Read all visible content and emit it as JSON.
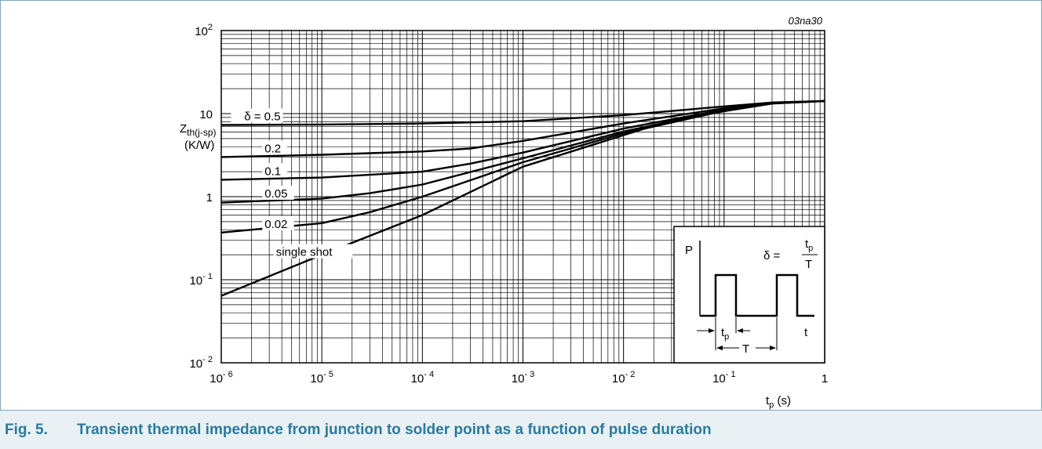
{
  "figure_id": "03na30",
  "caption": {
    "number": "Fig. 5.",
    "text": "Transient thermal impedance from junction to solder point as a function of pulse duration"
  },
  "chart_data": {
    "type": "line",
    "title": "",
    "xlabel": {
      "main": "t",
      "sub": "p",
      "unit": " (s)"
    },
    "ylabel": {
      "main": "Z",
      "sub": "th(j-sp)",
      "unit": "(K/W)"
    },
    "xscale": "log",
    "yscale": "log",
    "xlim": [
      1e-06,
      1
    ],
    "ylim": [
      0.01,
      100
    ],
    "grid": true,
    "x_ticks": [
      {
        "base": "10",
        "exp": "- 6"
      },
      {
        "base": "10",
        "exp": "- 5"
      },
      {
        "base": "10",
        "exp": "- 4"
      },
      {
        "base": "10",
        "exp": "- 3"
      },
      {
        "base": "10",
        "exp": "- 2"
      },
      {
        "base": "10",
        "exp": "- 1"
      },
      {
        "base": "1",
        "exp": ""
      }
    ],
    "y_ticks": [
      {
        "base": "10",
        "exp": "- 2"
      },
      {
        "base": "10",
        "exp": "- 1"
      },
      {
        "base": "1",
        "exp": ""
      },
      {
        "base": "10",
        "exp": ""
      },
      {
        "base": "10",
        "exp": "2"
      }
    ],
    "series": [
      {
        "name": "δ = 0.5",
        "x": [
          1e-06,
          1e-05,
          0.0001,
          0.001,
          0.01,
          0.1,
          0.3,
          1
        ],
        "y": [
          7.3,
          7.4,
          7.6,
          8.1,
          9.6,
          12.2,
          13.6,
          14.2
        ]
      },
      {
        "name": "0.2",
        "x": [
          1e-06,
          1e-05,
          0.0001,
          0.0003,
          0.001,
          0.01,
          0.1,
          0.3,
          1
        ],
        "y": [
          3.0,
          3.2,
          3.5,
          3.8,
          4.7,
          7.6,
          11.6,
          13.5,
          14.2
        ]
      },
      {
        "name": "0.1",
        "x": [
          1e-06,
          1e-05,
          0.0001,
          0.0003,
          0.001,
          0.01,
          0.1,
          0.3,
          1
        ],
        "y": [
          1.6,
          1.7,
          2.0,
          2.5,
          3.4,
          6.6,
          11.2,
          13.4,
          14.2
        ]
      },
      {
        "name": "0.05",
        "x": [
          1e-06,
          1e-05,
          3e-05,
          0.0001,
          0.001,
          0.01,
          0.1,
          0.3,
          1
        ],
        "y": [
          0.85,
          0.95,
          1.1,
          1.4,
          2.9,
          6.1,
          11.0,
          13.3,
          14.2
        ]
      },
      {
        "name": "0.02",
        "x": [
          1e-06,
          1e-05,
          3e-05,
          0.0001,
          0.001,
          0.01,
          0.1,
          0.3,
          1
        ],
        "y": [
          0.37,
          0.48,
          0.65,
          1.0,
          2.6,
          5.8,
          10.8,
          13.3,
          14.2
        ]
      },
      {
        "name": "single shot",
        "x": [
          1e-06,
          1e-05,
          0.0001,
          0.001,
          0.01,
          0.03,
          0.1,
          0.3,
          1
        ],
        "y": [
          0.064,
          0.2,
          0.6,
          2.3,
          5.5,
          8.3,
          10.7,
          13.2,
          14.2
        ]
      }
    ],
    "inset": {
      "p_label": "P",
      "t_label": "t",
      "formula": {
        "lhs": "δ =",
        "num_main": "t",
        "num_sub": "p",
        "den": "T"
      },
      "tp_label": {
        "main": "t",
        "sub": "p"
      },
      "period_label": "T"
    }
  }
}
